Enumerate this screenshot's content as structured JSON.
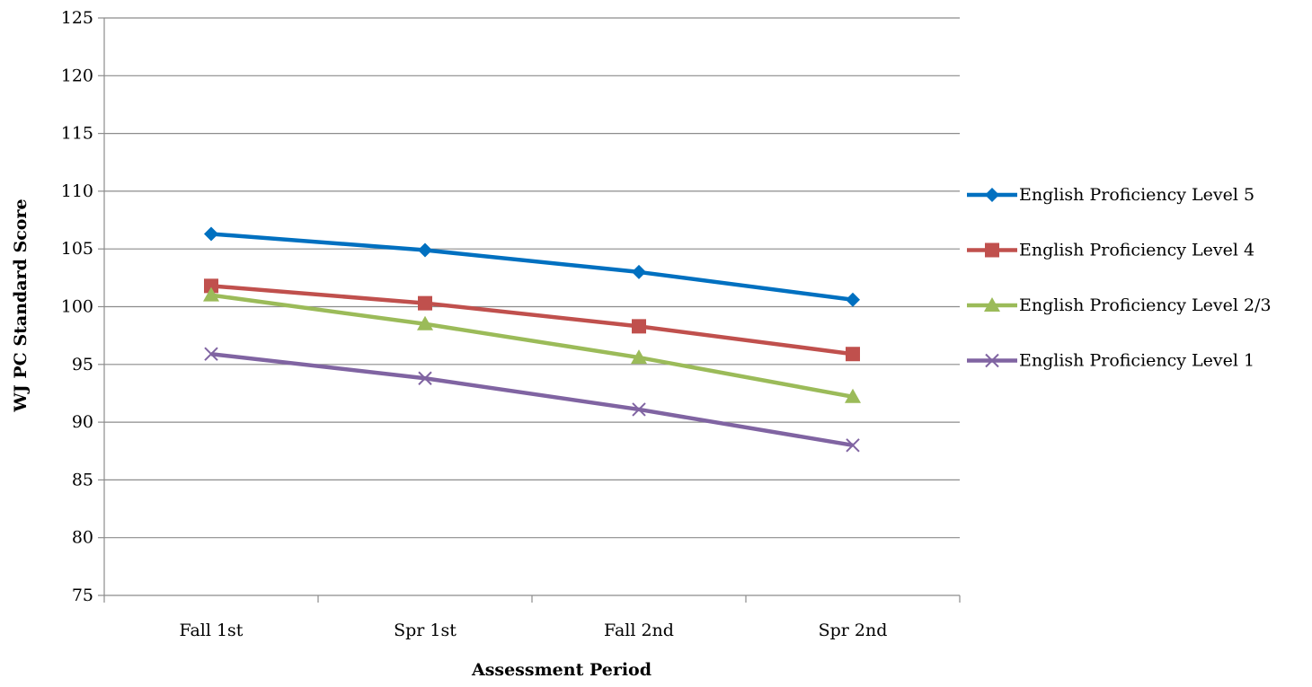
{
  "chart_data": {
    "type": "line",
    "title": "",
    "xlabel": "Assessment Period",
    "ylabel": "WJ  PC Standard  Score",
    "categories": [
      "Fall 1st",
      "Spr 1st",
      "Fall 2nd",
      "Spr 2nd"
    ],
    "ylim": [
      75,
      125
    ],
    "yticks": [
      75,
      80,
      85,
      90,
      95,
      100,
      105,
      110,
      115,
      120,
      125
    ],
    "grid": "horizontal",
    "legend_position": "right",
    "series": [
      {
        "name": "English Proficiency Level 5",
        "values": [
          106.3,
          104.9,
          103.0,
          100.6
        ],
        "color": "#0070C0",
        "marker": "diamond"
      },
      {
        "name": "English Proficiency Level 4",
        "values": [
          101.8,
          100.3,
          98.3,
          95.9
        ],
        "color": "#C0504D",
        "marker": "square"
      },
      {
        "name": "English Proficiency Level 2/3",
        "values": [
          101.0,
          98.5,
          95.6,
          92.2
        ],
        "color": "#9BBB59",
        "marker": "triangle"
      },
      {
        "name": "English Proficiency Level 1",
        "values": [
          95.9,
          93.8,
          91.1,
          88.0
        ],
        "color": "#8064A2",
        "marker": "x"
      }
    ]
  }
}
